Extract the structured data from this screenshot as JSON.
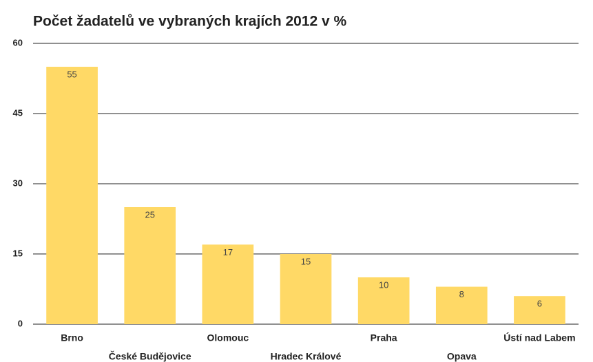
{
  "chart_data": {
    "type": "bar",
    "title": "Počet žadatelů ve vybraných krajích 2012 v %",
    "categories": [
      "Brno",
      "České Budějovice",
      "Olomouc",
      "Hradec Králové",
      "Praha",
      "Opava",
      "Ústí nad Labem"
    ],
    "values": [
      55,
      25,
      17,
      15,
      10,
      8,
      6
    ],
    "color": "#ffd966",
    "ylim": [
      0,
      60
    ],
    "yticks": [
      0,
      15,
      30,
      45,
      60
    ],
    "grid": true
  }
}
